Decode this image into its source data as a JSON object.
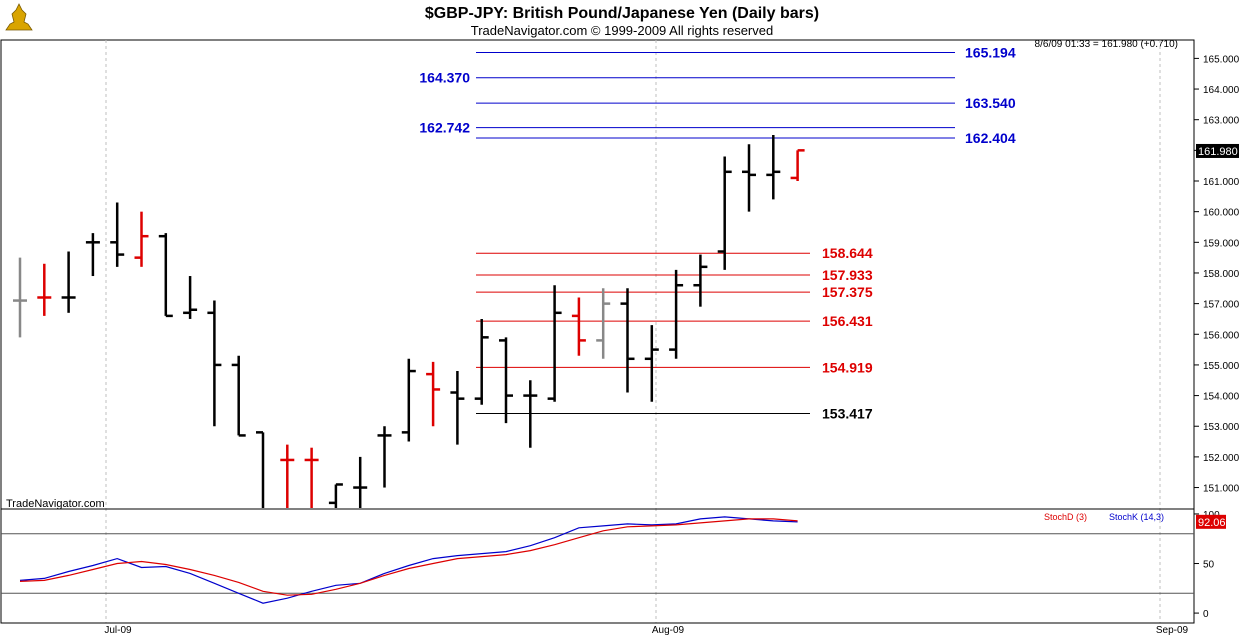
{
  "header": {
    "title": "$GBP-JPY:  British Pound/Japanese Yen  (Daily bars)",
    "subtitle": "TradeNavigator.com © 1999-2009 All rights reserved",
    "quote": "8/6/09 01:33 = 161.980 (+0.710)",
    "watermark": "TradeNavigator.com",
    "logo_icon": "trophy-logo-icon"
  },
  "colors": {
    "blue": "#0000cc",
    "red": "#dd0000",
    "gray": "#888888",
    "black": "#000000",
    "grid": "#bfbfbf",
    "stoch_k": "#0000cc",
    "stoch_d": "#dd0000"
  },
  "chart_data": [
    {
      "type": "ohlc",
      "ylim": [
        150.3,
        165.6
      ],
      "y_ticks": [
        151,
        152,
        153,
        154,
        155,
        156,
        157,
        158,
        159,
        160,
        161,
        162,
        163,
        164,
        165
      ],
      "y_tick_labels": [
        "151.000",
        "152.000",
        "153.000",
        "154.000",
        "155.000",
        "156.000",
        "157.000",
        "158.000",
        "159.000",
        "160.000",
        "161.000",
        "162.000",
        "163.000",
        "164.000",
        "165.000"
      ],
      "x_labels": [
        "Jul-09",
        "Aug-09",
        "Sep-09"
      ],
      "last_price": "161.980",
      "bars": [
        {
          "o": 157.1,
          "h": 158.5,
          "l": 155.9,
          "c": 157.1,
          "color": "gray"
        },
        {
          "o": 157.2,
          "h": 158.3,
          "l": 156.6,
          "c": 157.2,
          "color": "red"
        },
        {
          "o": 157.2,
          "h": 158.7,
          "l": 156.7,
          "c": 157.2,
          "color": "black"
        },
        {
          "o": 159.0,
          "h": 159.3,
          "l": 157.9,
          "c": 159.0,
          "color": "black"
        },
        {
          "o": 159.0,
          "h": 160.3,
          "l": 158.2,
          "c": 158.6,
          "color": "black"
        },
        {
          "o": 158.5,
          "h": 160.0,
          "l": 158.2,
          "c": 159.2,
          "color": "red"
        },
        {
          "o": 159.2,
          "h": 159.3,
          "l": 156.6,
          "c": 156.6,
          "color": "black"
        },
        {
          "o": 156.7,
          "h": 157.9,
          "l": 156.5,
          "c": 156.8,
          "color": "black"
        },
        {
          "o": 156.7,
          "h": 157.1,
          "l": 153.0,
          "c": 155.0,
          "color": "black"
        },
        {
          "o": 155.0,
          "h": 155.3,
          "l": 152.7,
          "c": 152.7,
          "color": "black"
        },
        {
          "o": 152.8,
          "h": 152.8,
          "l": 150.3,
          "c": 150.3,
          "color": "black"
        },
        {
          "o": 151.9,
          "h": 152.4,
          "l": 150.3,
          "c": 151.9,
          "color": "red"
        },
        {
          "o": 151.9,
          "h": 152.3,
          "l": 150.3,
          "c": 151.9,
          "color": "red"
        },
        {
          "o": 150.5,
          "h": 151.1,
          "l": 150.3,
          "c": 151.1,
          "color": "black"
        },
        {
          "o": 151.0,
          "h": 152.0,
          "l": 150.3,
          "c": 151.0,
          "color": "black"
        },
        {
          "o": 152.7,
          "h": 153.0,
          "l": 151.0,
          "c": 152.7,
          "color": "black"
        },
        {
          "o": 152.8,
          "h": 155.2,
          "l": 152.5,
          "c": 154.8,
          "color": "black"
        },
        {
          "o": 154.7,
          "h": 155.1,
          "l": 153.0,
          "c": 154.2,
          "color": "red"
        },
        {
          "o": 154.1,
          "h": 154.8,
          "l": 152.4,
          "c": 153.9,
          "color": "black"
        },
        {
          "o": 153.9,
          "h": 156.5,
          "l": 153.7,
          "c": 155.9,
          "color": "black"
        },
        {
          "o": 155.8,
          "h": 155.9,
          "l": 153.1,
          "c": 154.0,
          "color": "black"
        },
        {
          "o": 154.0,
          "h": 154.5,
          "l": 152.3,
          "c": 154.0,
          "color": "black"
        },
        {
          "o": 153.9,
          "h": 157.6,
          "l": 153.8,
          "c": 156.7,
          "color": "black"
        },
        {
          "o": 156.6,
          "h": 157.2,
          "l": 155.3,
          "c": 155.8,
          "color": "red"
        },
        {
          "o": 155.8,
          "h": 157.5,
          "l": 155.2,
          "c": 157.0,
          "color": "gray"
        },
        {
          "o": 157.0,
          "h": 157.5,
          "l": 154.1,
          "c": 155.2,
          "color": "black"
        },
        {
          "o": 155.2,
          "h": 156.3,
          "l": 153.8,
          "c": 155.5,
          "color": "black"
        },
        {
          "o": 155.5,
          "h": 158.1,
          "l": 155.2,
          "c": 157.6,
          "color": "black"
        },
        {
          "o": 157.6,
          "h": 158.6,
          "l": 156.9,
          "c": 158.2,
          "color": "black"
        },
        {
          "o": 158.7,
          "h": 161.8,
          "l": 158.1,
          "c": 161.3,
          "color": "black"
        },
        {
          "o": 161.3,
          "h": 162.2,
          "l": 160.0,
          "c": 161.2,
          "color": "black"
        },
        {
          "o": 161.2,
          "h": 162.5,
          "l": 160.4,
          "c": 161.3,
          "color": "black"
        },
        {
          "o": 161.1,
          "h": 162.0,
          "l": 161.0,
          "c": 162.0,
          "color": "red"
        }
      ],
      "levels": [
        {
          "value": 165.194,
          "label": "165.194",
          "color": "blue",
          "side": "right"
        },
        {
          "value": 164.37,
          "label": "164.370",
          "color": "blue",
          "side": "left"
        },
        {
          "value": 163.54,
          "label": "163.540",
          "color": "blue",
          "side": "right"
        },
        {
          "value": 162.742,
          "label": "162.742",
          "color": "blue",
          "side": "left"
        },
        {
          "value": 162.404,
          "label": "162.404",
          "color": "blue",
          "side": "right"
        },
        {
          "value": 158.644,
          "label": "158.644",
          "color": "red",
          "side": "right"
        },
        {
          "value": 157.933,
          "label": "157.933",
          "color": "red",
          "side": "right"
        },
        {
          "value": 157.375,
          "label": "157.375",
          "color": "red",
          "side": "right"
        },
        {
          "value": 156.431,
          "label": "156.431",
          "color": "red",
          "side": "right"
        },
        {
          "value": 154.919,
          "label": "154.919",
          "color": "red",
          "side": "right"
        },
        {
          "value": 153.417,
          "label": "153.417",
          "color": "black",
          "side": "right"
        }
      ]
    },
    {
      "type": "line",
      "ylim": [
        -10,
        105
      ],
      "y_ticks": [
        0,
        50,
        100
      ],
      "y_tick_labels": [
        "0",
        "50",
        "100"
      ],
      "reference_lines": [
        20,
        80
      ],
      "last_value": "92.06",
      "series": [
        {
          "name": "StochK (14,3)",
          "color": "#0000cc",
          "values": [
            33,
            35,
            42,
            48,
            55,
            46,
            47,
            40,
            30,
            20,
            10,
            15,
            22,
            28,
            30,
            40,
            48,
            55,
            58,
            60,
            62,
            68,
            76,
            86,
            88,
            90,
            89,
            90,
            95,
            97,
            95,
            93,
            92
          ]
        },
        {
          "name": "StochD (3)",
          "color": "#dd0000",
          "values": [
            32,
            33,
            38,
            44,
            50,
            52,
            49,
            44,
            38,
            31,
            22,
            18,
            19,
            24,
            30,
            38,
            45,
            50,
            55,
            57,
            59,
            63,
            69,
            76,
            83,
            87,
            88,
            89,
            91,
            93,
            95,
            95,
            93
          ]
        }
      ]
    }
  ]
}
